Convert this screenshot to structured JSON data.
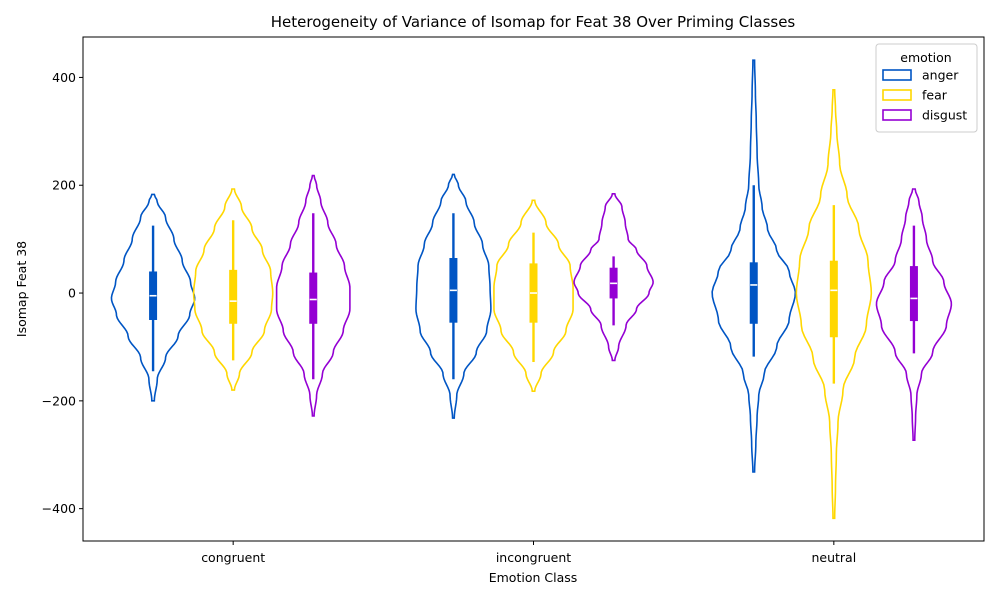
{
  "chart_data": {
    "type": "violin",
    "title": "Heterogeneity of Variance of Isomap for Feat 38 Over Priming Classes",
    "xlabel": "Emotion Class",
    "ylabel": "Isomap Feat 38",
    "categories": [
      "congruent",
      "incongruent",
      "neutral"
    ],
    "ylim": [
      -460,
      475
    ],
    "yticks": [
      -400,
      -200,
      0,
      200,
      400
    ],
    "legend": {
      "title": "emotion",
      "placement": "top-right"
    },
    "series": [
      {
        "name": "anger",
        "color": "#0055c4",
        "groups": [
          {
            "min": -200,
            "max": 183,
            "q1": -50,
            "median": -5,
            "q3": 40,
            "whisker_low": -145,
            "whisker_high": 125,
            "density": [
              [
                -200,
                0.03
              ],
              [
                -160,
                0.1
              ],
              [
                -120,
                0.3
              ],
              [
                -80,
                0.6
              ],
              [
                -40,
                0.88
              ],
              [
                -10,
                1.0
              ],
              [
                20,
                0.9
              ],
              [
                60,
                0.7
              ],
              [
                100,
                0.5
              ],
              [
                140,
                0.3
              ],
              [
                170,
                0.1
              ],
              [
                183,
                0.03
              ]
            ]
          },
          {
            "min": -232,
            "max": 220,
            "q1": -55,
            "median": 5,
            "q3": 65,
            "whisker_low": -160,
            "whisker_high": 148,
            "density": [
              [
                -232,
                0.02
              ],
              [
                -190,
                0.08
              ],
              [
                -150,
                0.25
              ],
              [
                -110,
                0.55
              ],
              [
                -70,
                0.8
              ],
              [
                -30,
                0.9
              ],
              [
                10,
                0.88
              ],
              [
                50,
                0.85
              ],
              [
                90,
                0.7
              ],
              [
                130,
                0.5
              ],
              [
                170,
                0.3
              ],
              [
                200,
                0.12
              ],
              [
                220,
                0.02
              ]
            ]
          },
          {
            "min": -332,
            "max": 432,
            "q1": -57,
            "median": 15,
            "q3": 57,
            "whisker_low": -118,
            "whisker_high": 200,
            "density": [
              [
                -332,
                0.02
              ],
              [
                -280,
                0.05
              ],
              [
                -230,
                0.08
              ],
              [
                -190,
                0.12
              ],
              [
                -150,
                0.25
              ],
              [
                -100,
                0.55
              ],
              [
                -50,
                0.85
              ],
              [
                0,
                1.0
              ],
              [
                40,
                0.85
              ],
              [
                80,
                0.55
              ],
              [
                120,
                0.33
              ],
              [
                160,
                0.2
              ],
              [
                200,
                0.12
              ],
              [
                260,
                0.08
              ],
              [
                320,
                0.06
              ],
              [
                370,
                0.04
              ],
              [
                432,
                0.02
              ]
            ]
          }
        ]
      },
      {
        "name": "fear",
        "color": "#ffd700",
        "groups": [
          {
            "min": -180,
            "max": 193,
            "q1": -57,
            "median": -15,
            "q3": 43,
            "whisker_low": -125,
            "whisker_high": 135,
            "density": [
              [
                -180,
                0.03
              ],
              [
                -150,
                0.15
              ],
              [
                -110,
                0.45
              ],
              [
                -70,
                0.75
              ],
              [
                -30,
                0.92
              ],
              [
                0,
                0.95
              ],
              [
                40,
                0.9
              ],
              [
                80,
                0.7
              ],
              [
                120,
                0.45
              ],
              [
                160,
                0.2
              ],
              [
                193,
                0.03
              ]
            ]
          },
          {
            "min": -182,
            "max": 172,
            "q1": -55,
            "median": 0,
            "q3": 55,
            "whisker_low": -128,
            "whisker_high": 112,
            "density": [
              [
                -182,
                0.03
              ],
              [
                -150,
                0.18
              ],
              [
                -110,
                0.48
              ],
              [
                -70,
                0.78
              ],
              [
                -30,
                0.95
              ],
              [
                10,
                0.95
              ],
              [
                50,
                0.88
              ],
              [
                90,
                0.6
              ],
              [
                130,
                0.3
              ],
              [
                172,
                0.03
              ]
            ]
          },
          {
            "min": -418,
            "max": 377,
            "q1": -82,
            "median": 5,
            "q3": 60,
            "whisker_low": -168,
            "whisker_high": 163,
            "density": [
              [
                -418,
                0.02
              ],
              [
                -360,
                0.04
              ],
              [
                -300,
                0.06
              ],
              [
                -240,
                0.1
              ],
              [
                -180,
                0.22
              ],
              [
                -120,
                0.5
              ],
              [
                -60,
                0.78
              ],
              [
                0,
                0.9
              ],
              [
                60,
                0.82
              ],
              [
                120,
                0.6
              ],
              [
                180,
                0.32
              ],
              [
                240,
                0.14
              ],
              [
                300,
                0.07
              ],
              [
                340,
                0.04
              ],
              [
                377,
                0.02
              ]
            ]
          }
        ]
      },
      {
        "name": "disgust",
        "color": "#9400d3",
        "groups": [
          {
            "min": -228,
            "max": 218,
            "q1": -57,
            "median": -12,
            "q3": 38,
            "whisker_low": -160,
            "whisker_high": 148,
            "density": [
              [
                -228,
                0.02
              ],
              [
                -190,
                0.08
              ],
              [
                -150,
                0.22
              ],
              [
                -110,
                0.48
              ],
              [
                -70,
                0.72
              ],
              [
                -30,
                0.88
              ],
              [
                10,
                0.88
              ],
              [
                50,
                0.75
              ],
              [
                90,
                0.55
              ],
              [
                130,
                0.35
              ],
              [
                170,
                0.18
              ],
              [
                200,
                0.08
              ],
              [
                218,
                0.02
              ]
            ]
          },
          {
            "min": -125,
            "max": 184,
            "q1": -10,
            "median": 18,
            "q3": 47,
            "whisker_low": -60,
            "whisker_high": 68,
            "density": [
              [
                -125,
                0.03
              ],
              [
                -100,
                0.12
              ],
              [
                -60,
                0.3
              ],
              [
                -30,
                0.55
              ],
              [
                0,
                0.85
              ],
              [
                20,
                0.95
              ],
              [
                50,
                0.8
              ],
              [
                80,
                0.55
              ],
              [
                100,
                0.35
              ],
              [
                130,
                0.28
              ],
              [
                160,
                0.2
              ],
              [
                184,
                0.03
              ]
            ]
          },
          {
            "min": -273,
            "max": 193,
            "q1": -52,
            "median": -10,
            "q3": 50,
            "whisker_low": -112,
            "whisker_high": 125,
            "density": [
              [
                -273,
                0.02
              ],
              [
                -230,
                0.04
              ],
              [
                -190,
                0.07
              ],
              [
                -150,
                0.18
              ],
              [
                -110,
                0.45
              ],
              [
                -60,
                0.78
              ],
              [
                -20,
                0.9
              ],
              [
                20,
                0.72
              ],
              [
                60,
                0.45
              ],
              [
                100,
                0.3
              ],
              [
                140,
                0.2
              ],
              [
                170,
                0.12
              ],
              [
                193,
                0.03
              ]
            ]
          }
        ]
      }
    ]
  }
}
